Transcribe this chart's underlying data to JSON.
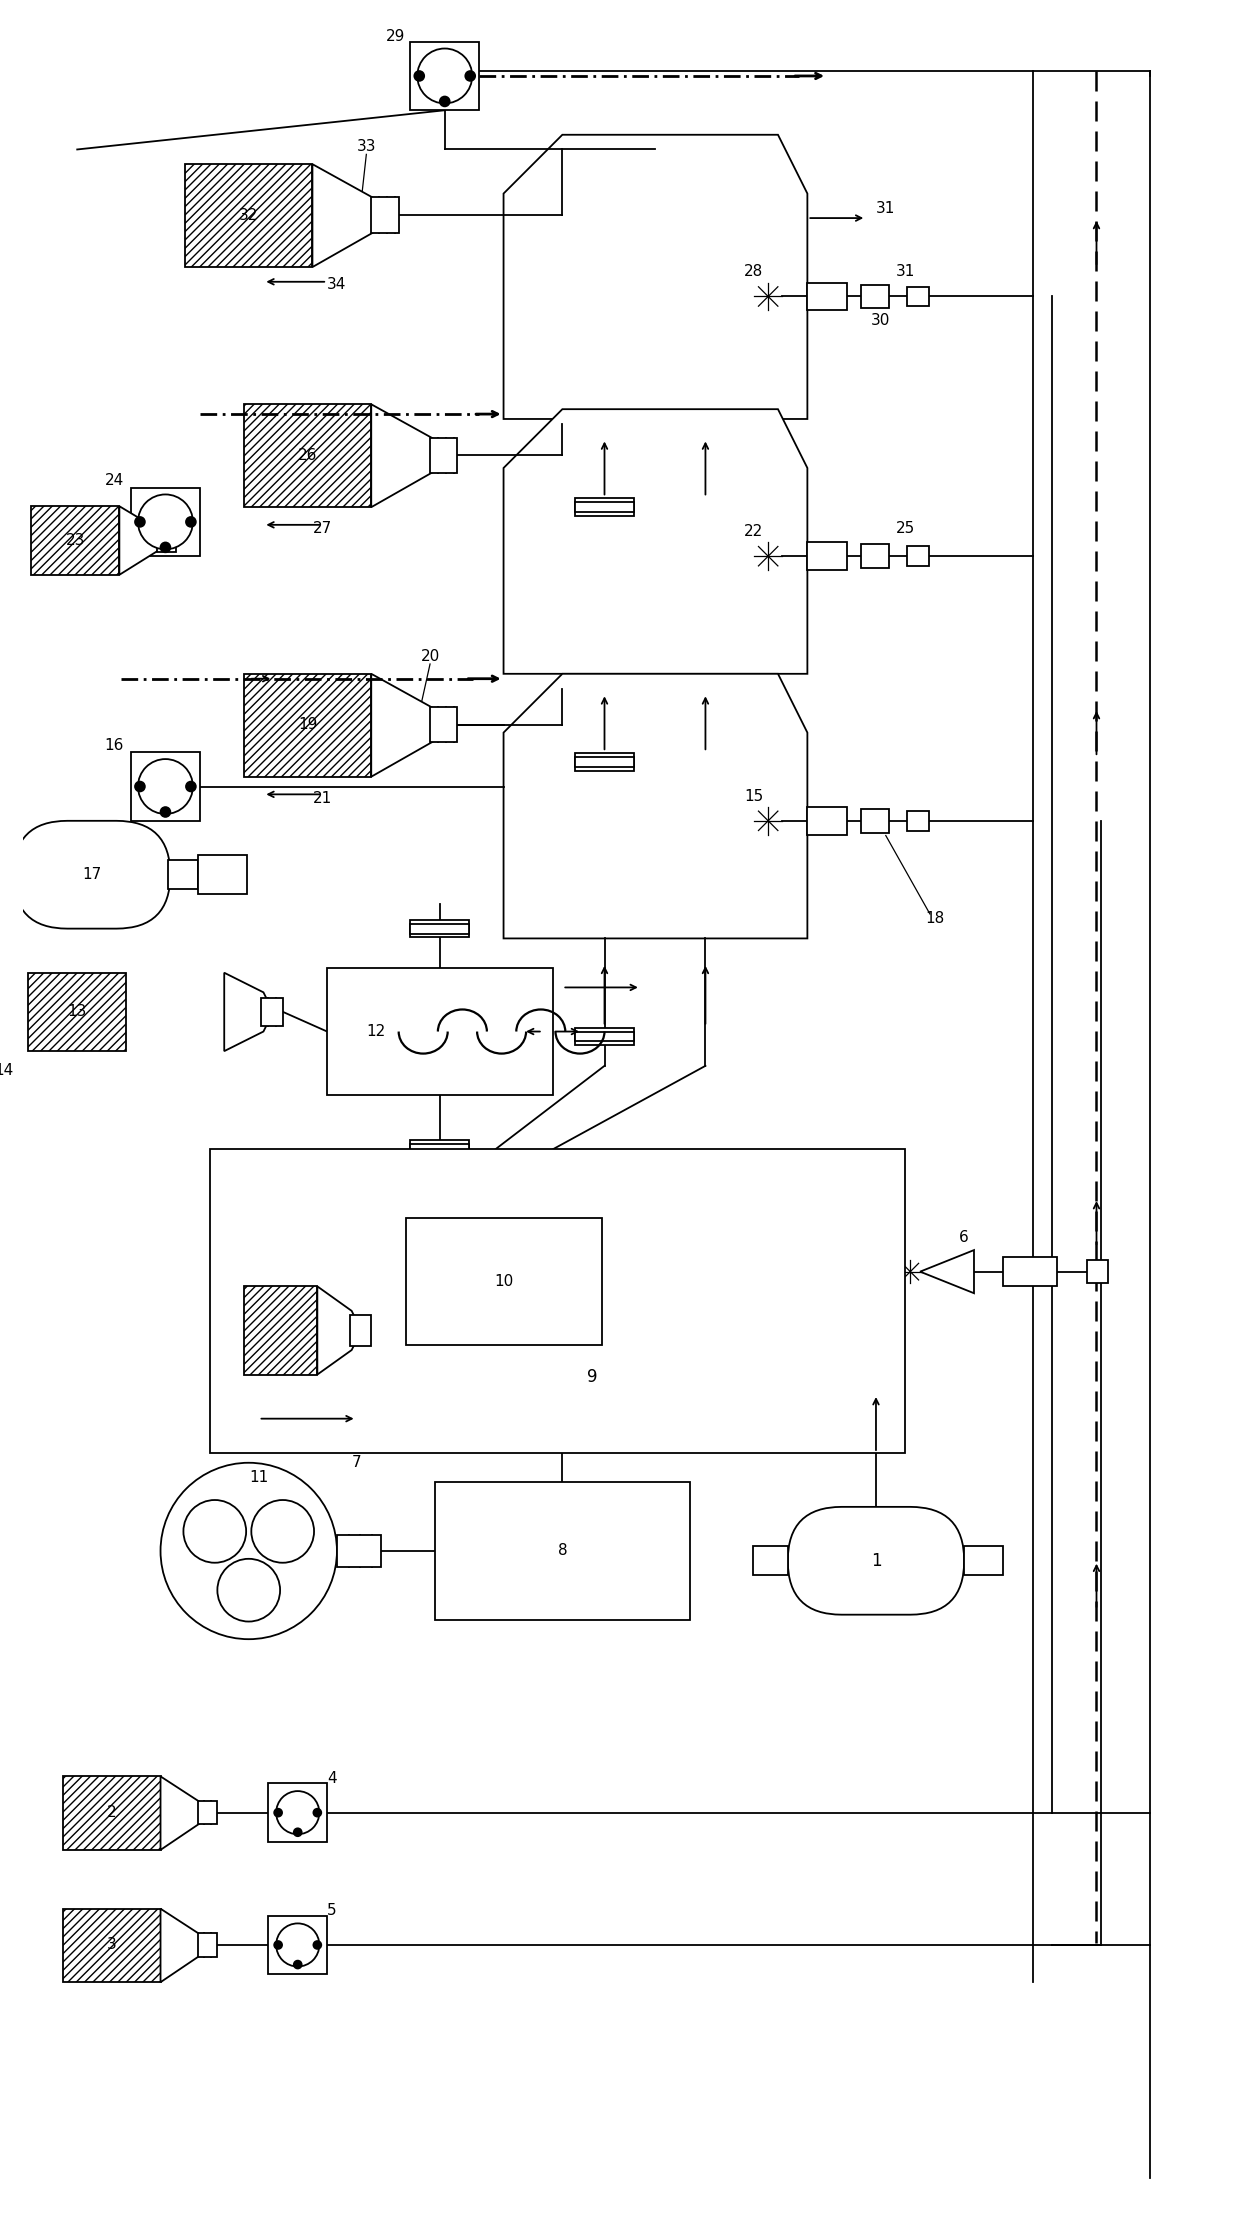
{
  "bg_color": "#ffffff",
  "figsize": [
    12.4,
    22.14
  ],
  "dpi": 100,
  "lw": 1.3
}
